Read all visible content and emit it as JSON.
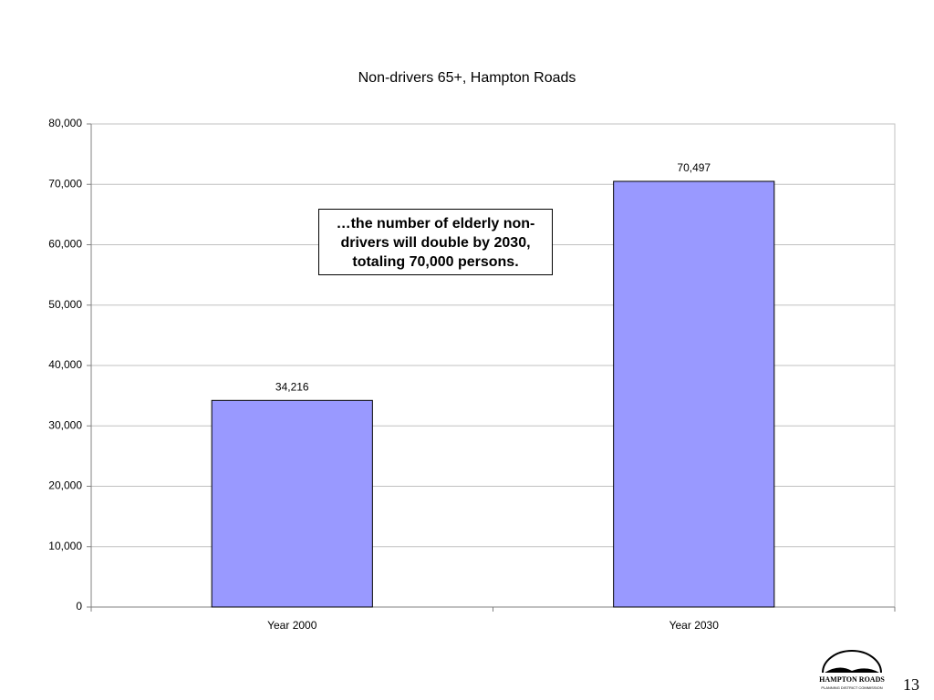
{
  "chart_data": {
    "type": "bar",
    "title": "Non-drivers 65+, Hampton Roads",
    "categories": [
      "Year 2000",
      "Year 2030"
    ],
    "values": [
      34216,
      70497
    ],
    "value_labels": [
      "34,216",
      "70,497"
    ],
    "color": "#9999ff",
    "ylim": [
      0,
      80000
    ],
    "yticks": [
      0,
      {
        "value": 10000,
        "label": "10,000"
      },
      {
        "value": 20000,
        "label": "20,000"
      },
      {
        "value": 30000,
        "label": "30,000"
      },
      {
        "value": 40000,
        "label": "40,000"
      },
      {
        "value": 50000,
        "label": "50,000"
      },
      {
        "value": 60000,
        "label": "60,000"
      },
      {
        "value": 70000,
        "label": "70,000"
      },
      {
        "value": 80000,
        "label": "80,000"
      }
    ],
    "grid": true,
    "annotation": "…the number of elderly non-drivers will double by 2030, totaling 70,000 persons."
  },
  "footer": {
    "logo_title": "HAMPTON ROADS",
    "logo_subtitle": "PLANNING DISTRICT COMMISSION",
    "page_number": "13"
  }
}
